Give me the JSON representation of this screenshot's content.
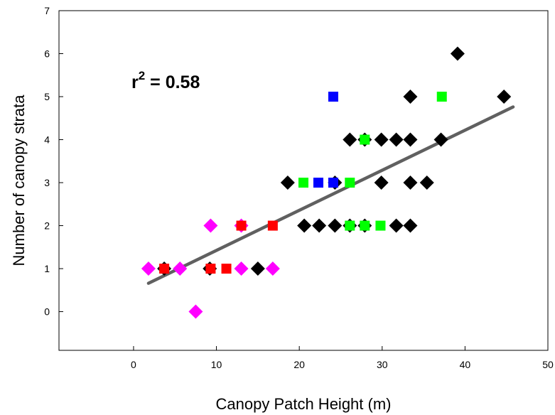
{
  "chart_data": {
    "type": "scatter",
    "xlabel": "Canopy Patch Height (m)",
    "ylabel": "Number of canopy strata",
    "xlim": [
      -9,
      50
    ],
    "ylim": [
      -0.9,
      7
    ],
    "x_ticks": [
      "0",
      "10",
      "20",
      "30",
      "40",
      "50"
    ],
    "y_ticks": [
      "0",
      "1",
      "2",
      "3",
      "4",
      "5",
      "6",
      "7"
    ],
    "grid": false,
    "annotation": {
      "base": "r",
      "sup": "2",
      "rest": " = 0.58"
    },
    "regression_line": {
      "x": [
        1.8,
        45.8
      ],
      "y": [
        0.66,
        4.76
      ],
      "color": "#606060"
    },
    "series": [
      {
        "marker": "diamond",
        "color": "#000000",
        "points": [
          [
            3.7,
            1
          ],
          [
            9.2,
            1
          ],
          [
            15.0,
            1
          ],
          [
            20.6,
            2
          ],
          [
            22.4,
            2
          ],
          [
            24.3,
            2
          ],
          [
            26.1,
            2
          ],
          [
            27.9,
            2
          ],
          [
            31.7,
            2
          ],
          [
            33.4,
            2
          ],
          [
            18.6,
            3
          ],
          [
            24.3,
            3
          ],
          [
            29.9,
            3
          ],
          [
            33.4,
            3
          ],
          [
            35.4,
            3
          ],
          [
            26.1,
            4
          ],
          [
            27.9,
            4
          ],
          [
            29.9,
            4
          ],
          [
            31.7,
            4
          ],
          [
            33.4,
            4
          ],
          [
            37.1,
            4
          ],
          [
            33.4,
            5
          ],
          [
            44.7,
            5
          ],
          [
            39.1,
            6
          ]
        ]
      },
      {
        "marker": "diamond",
        "color": "#ff00ff",
        "points": [
          [
            1.8,
            1
          ],
          [
            5.6,
            1
          ],
          [
            13.0,
            1
          ],
          [
            16.8,
            1
          ],
          [
            9.3,
            2
          ],
          [
            13.0,
            2
          ],
          [
            7.5,
            0
          ]
        ]
      },
      {
        "marker": "square",
        "color": "#ff0000",
        "points": [
          [
            3.7,
            1
          ],
          [
            9.3,
            1
          ],
          [
            11.2,
            1
          ],
          [
            13.0,
            2
          ],
          [
            16.8,
            2
          ]
        ]
      },
      {
        "marker": "square",
        "color": "#00ff00",
        "points": [
          [
            26.1,
            2
          ],
          [
            27.9,
            2
          ],
          [
            29.8,
            2
          ],
          [
            20.5,
            3
          ],
          [
            26.1,
            3
          ],
          [
            27.9,
            4
          ],
          [
            37.2,
            5
          ]
        ]
      },
      {
        "marker": "square",
        "color": "#0000ff",
        "points": [
          [
            22.3,
            3
          ],
          [
            24.1,
            3
          ],
          [
            24.1,
            5
          ]
        ]
      }
    ]
  }
}
